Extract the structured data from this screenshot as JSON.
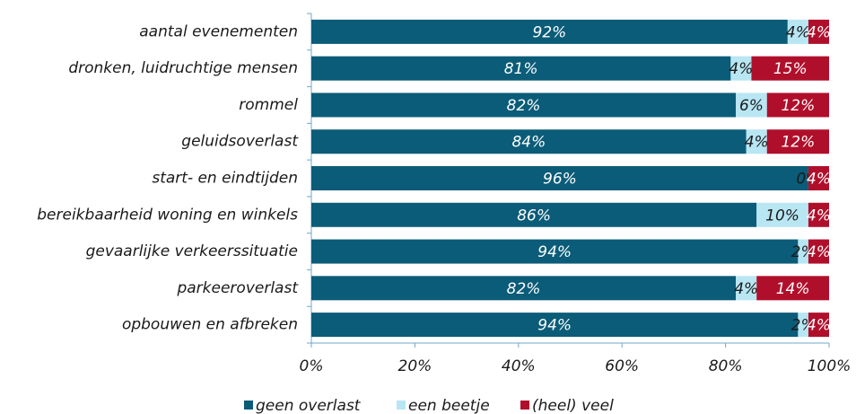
{
  "chart_data": {
    "type": "stacked-bar-horizontal",
    "categories": [
      "aantal evenementen",
      "dronken, luidruchtige mensen",
      "rommel",
      "geluidsoverlast",
      "start- en eindtijden",
      "bereikbaarheid woning en winkels",
      "gevaarlijke verkeerssituatie",
      "parkeeroverlast",
      "opbouwen en afbreken"
    ],
    "series": [
      {
        "name": "geen overlast",
        "color": "#0b5c78",
        "label_color": "#ffffff",
        "values": [
          92,
          81,
          82,
          84,
          96,
          86,
          94,
          82,
          94
        ],
        "value_labels": [
          "92%",
          "81%",
          "82%",
          "84%",
          "96%",
          "86%",
          "94%",
          "82%",
          "94%"
        ]
      },
      {
        "name": "een beetje",
        "color": "#b8e6f3",
        "label_color": "#1a1a1a",
        "values": [
          4,
          4,
          6,
          4,
          0,
          10,
          2,
          4,
          2
        ],
        "value_labels": [
          "4%",
          "4%",
          "6%",
          "4%",
          "0%",
          "10%",
          "2%",
          "4%",
          "2%"
        ]
      },
      {
        "name": "(heel) veel",
        "color": "#b00f2b",
        "label_color": "#ffffff",
        "values": [
          4,
          15,
          12,
          12,
          4,
          4,
          4,
          14,
          4
        ],
        "value_labels": [
          "4%",
          "15%",
          "12%",
          "12%",
          "4%",
          "4%",
          "4%",
          "14%",
          "4%"
        ]
      }
    ],
    "xlim": [
      0,
      100
    ],
    "xticks": [
      {
        "value": 0,
        "label": "0%"
      },
      {
        "value": 20,
        "label": "20%"
      },
      {
        "value": 40,
        "label": "40%"
      },
      {
        "value": 60,
        "label": "60%"
      },
      {
        "value": 80,
        "label": "80%"
      },
      {
        "value": 100,
        "label": "100%"
      }
    ],
    "legend": "bottom"
  }
}
